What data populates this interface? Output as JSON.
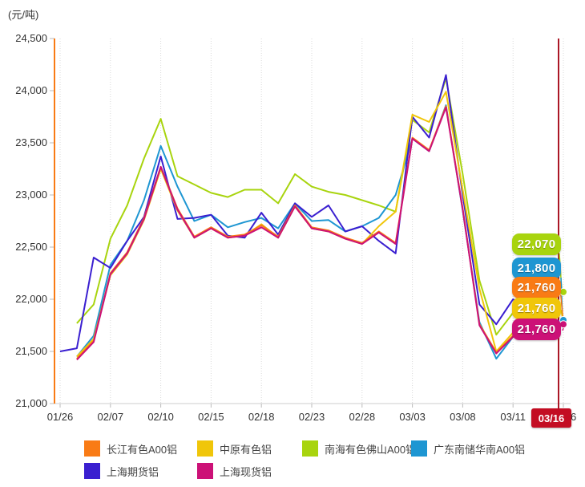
{
  "unit_label": "(元/吨)",
  "y_axis": {
    "min": 21000,
    "max": 24500,
    "step": 500,
    "tick_labels": [
      "24,500",
      "24,000",
      "23,500",
      "23,000",
      "22,500",
      "22,000",
      "21,500",
      "21,000"
    ]
  },
  "x_axis": {
    "tick_labels": [
      "01/26",
      "02/07",
      "02/10",
      "02/15",
      "02/18",
      "02/23",
      "02/28",
      "03/03",
      "03/08",
      "03/11",
      "03/16"
    ]
  },
  "current_date_marker": {
    "label": "03/16",
    "line_color": "#ab1726",
    "badge_color": "#c30d23"
  },
  "value_callouts": [
    {
      "series": "南海有色佛山A00铝",
      "text": "22,070",
      "value": 22070,
      "color": "#a8d40e"
    },
    {
      "series": "广东南储华南A00铝",
      "text": "21,800",
      "value": 21800,
      "color": "#1e96d2"
    },
    {
      "series": "长江有色A00铝",
      "text": "21,760",
      "value": 21760,
      "color": "#f97b15"
    },
    {
      "series": "中原有色铝",
      "text": "21,760",
      "value": 21760,
      "color": "#f0c60a"
    },
    {
      "series": "上海现货铝",
      "text": "21,760",
      "value": 21760,
      "color": "#cc1177"
    }
  ],
  "legend": [
    {
      "label": "长江有色A00铝",
      "color": "#f97b15"
    },
    {
      "label": "中原有色铝",
      "color": "#f0c60a"
    },
    {
      "label": "南海有色佛山A00铝",
      "color": "#a8d40e"
    },
    {
      "label": "广东南储华南A00铝",
      "color": "#1e96d2"
    },
    {
      "label": "上海期货铝",
      "color": "#3a1fd0"
    },
    {
      "label": "上海现货铝",
      "color": "#cc1177"
    }
  ],
  "colors": {
    "axis_line": "#f97b15",
    "baseline": "#cccccc",
    "gridline": "#d9d9d9",
    "text": "#333333"
  },
  "chart_data": {
    "type": "line",
    "title": "",
    "xlabel": "",
    "ylabel": "(元/吨)",
    "ylim": [
      21000,
      24500
    ],
    "grid": "vertical-dotted",
    "legend_position": "bottom",
    "x": [
      "01/26",
      "01/27",
      "01/28",
      "02/07",
      "02/08",
      "02/09",
      "02/10",
      "02/11",
      "02/14",
      "02/15",
      "02/16",
      "02/17",
      "02/18",
      "02/21",
      "02/22",
      "02/23",
      "02/24",
      "02/25",
      "02/28",
      "03/01",
      "03/02",
      "03/03",
      "03/04",
      "03/07",
      "03/08",
      "03/09",
      "03/10",
      "03/11",
      "03/14",
      "03/15",
      "03/16"
    ],
    "series": [
      {
        "name": "南海有色佛山A00铝",
        "color": "#a8d40e",
        "end_dot": true,
        "values": [
          null,
          21770,
          21950,
          22580,
          22900,
          23350,
          23730,
          23180,
          23100,
          23020,
          22980,
          23050,
          23050,
          22920,
          23200,
          23080,
          23030,
          23000,
          22950,
          22900,
          22840,
          23720,
          23600,
          24120,
          23200,
          22180,
          21660,
          21870,
          21950,
          22010,
          22070
        ]
      },
      {
        "name": "广东南储华南A00铝",
        "color": "#1e96d2",
        "end_dot": true,
        "values": [
          null,
          21450,
          21650,
          22330,
          22560,
          22950,
          23470,
          23080,
          22750,
          22810,
          22690,
          22740,
          22780,
          22680,
          22920,
          22750,
          22760,
          22650,
          22700,
          22780,
          23000,
          23540,
          23420,
          23860,
          22850,
          21780,
          21430,
          21640,
          21720,
          21770,
          21800
        ]
      },
      {
        "name": "上海期货铝",
        "color": "#3a1fd0",
        "end_dot": false,
        "values": [
          21500,
          21530,
          22400,
          22300,
          22560,
          22790,
          23370,
          22770,
          22780,
          22810,
          22610,
          22590,
          22830,
          22620,
          22920,
          22790,
          22900,
          22650,
          22700,
          22560,
          22440,
          23750,
          23550,
          24150,
          23000,
          21950,
          21760,
          22000,
          21900,
          21820,
          21780
        ]
      },
      {
        "name": "中原有色铝",
        "color": "#f0c60a",
        "end_dot": false,
        "values": [
          null,
          21450,
          21620,
          22230,
          22430,
          22760,
          23250,
          22850,
          22590,
          22680,
          22590,
          22610,
          22720,
          22590,
          22890,
          22680,
          22650,
          22580,
          22530,
          22700,
          22840,
          23770,
          23700,
          23990,
          23050,
          22100,
          21500,
          21680,
          21710,
          21740,
          21760
        ]
      },
      {
        "name": "长江有色A00铝",
        "color": "#f97b15",
        "end_dot": false,
        "values": [
          null,
          21430,
          21600,
          22250,
          22450,
          22780,
          23270,
          22870,
          22600,
          22690,
          22600,
          22620,
          22710,
          22600,
          22900,
          22690,
          22660,
          22590,
          22540,
          22650,
          22540,
          23550,
          23430,
          23850,
          22870,
          21760,
          21490,
          21650,
          21700,
          21730,
          21760
        ]
      },
      {
        "name": "上海现货铝",
        "color": "#cc1177",
        "end_dot": true,
        "values": [
          null,
          21420,
          21590,
          22240,
          22440,
          22770,
          23270,
          22860,
          22590,
          22680,
          22590,
          22610,
          22690,
          22590,
          22890,
          22680,
          22650,
          22580,
          22530,
          22640,
          22530,
          23540,
          23420,
          23840,
          22860,
          21750,
          21480,
          21640,
          21690,
          21720,
          21760
        ]
      }
    ]
  }
}
